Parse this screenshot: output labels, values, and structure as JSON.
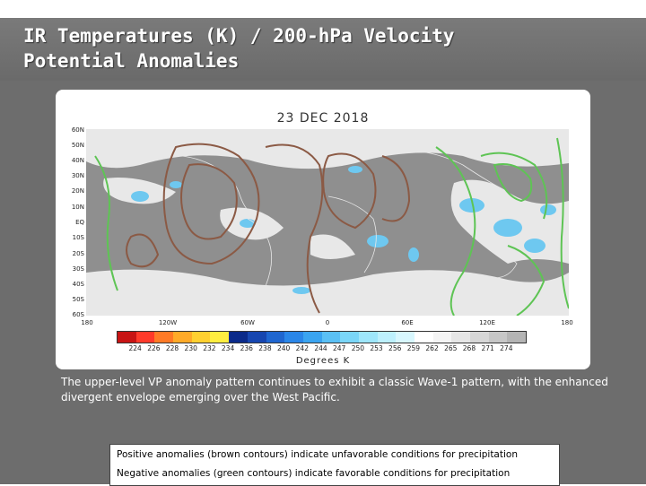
{
  "slide": {
    "title_line1": "IR Temperatures (K) / 200-hPa Velocity",
    "title_line2": "Potential Anomalies",
    "caption": "The upper-level VP anomaly pattern continues to exhibit a classic Wave-1 pattern, with the enhanced divergent envelope emerging over the West Pacific.",
    "legend_positive": "Positive anomalies (brown contours) indicate unfavorable conditions for precipitation",
    "legend_negative": "Negative anomalies (green contours) indicate favorable conditions for precipitation"
  },
  "map": {
    "date": "23 DEC 2018",
    "lat_labels": [
      "60N",
      "50N",
      "40N",
      "30N",
      "20N",
      "10N",
      "EQ",
      "10S",
      "20S",
      "30S",
      "40S",
      "50S",
      "60S"
    ],
    "lon_labels": [
      "180",
      "120W",
      "60W",
      "0",
      "60E",
      "120E",
      "180"
    ],
    "colorbar_values": [
      "224",
      "226",
      "228",
      "230",
      "232",
      "234",
      "236",
      "238",
      "240",
      "242",
      "244",
      "247",
      "250",
      "253",
      "256",
      "259",
      "262",
      "265",
      "268",
      "271",
      "274"
    ],
    "colorbar_title": "Degrees K",
    "colors": {
      "background_gray": "#8f8f8f",
      "cloud_white": "#f2f2f2",
      "cold_cloud_blue": "#66c8f0",
      "positive_contour": "#8b5a45",
      "negative_contour": "#5ec454",
      "coastline": "#e0e0e0"
    },
    "colorbar_colors": [
      "#c81414",
      "#ff3a2a",
      "#ff7a26",
      "#ffaa28",
      "#ffd030",
      "#ffee40",
      "#0a2a8a",
      "#1646b0",
      "#1f66d0",
      "#2a86e8",
      "#3aa4f0",
      "#5ac0f5",
      "#7ad6f8",
      "#9ee6fb",
      "#bdf0fd",
      "#d8f7fe",
      "#ffffff",
      "#f4f4f4",
      "#e6e6e6",
      "#d6d6d6",
      "#c6c6c6",
      "#b4b4b4"
    ]
  }
}
